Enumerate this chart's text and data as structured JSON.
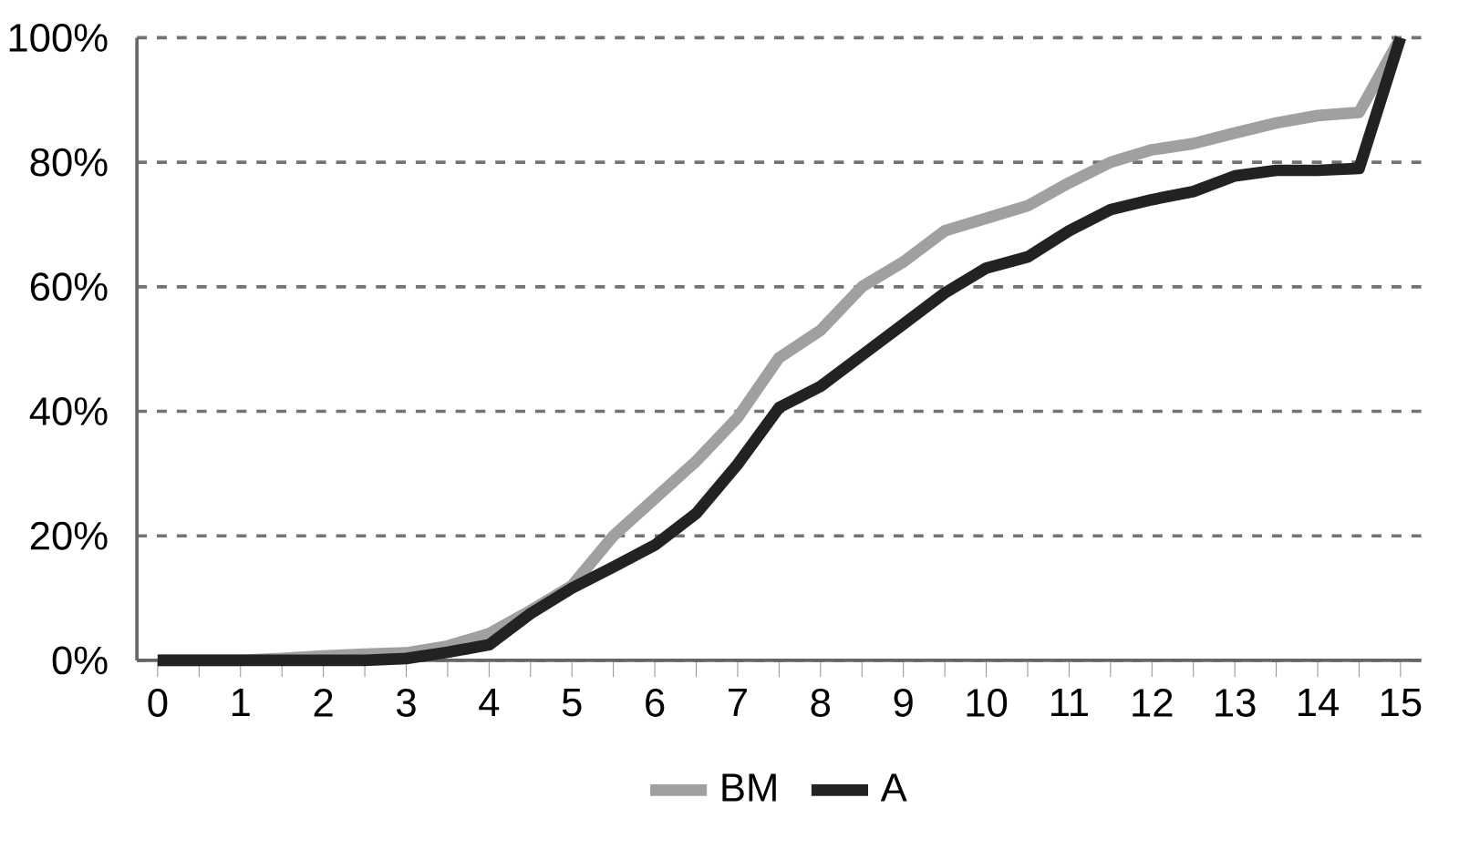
{
  "chart_data": {
    "type": "line",
    "x": [
      0,
      0.5,
      1,
      1.5,
      2,
      2.5,
      3,
      3.5,
      4,
      4.5,
      5,
      5.5,
      6,
      6.5,
      7,
      7.5,
      8,
      8.5,
      9,
      9.5,
      10,
      10.5,
      11,
      11.5,
      12,
      12.5,
      13,
      13.5,
      14,
      14.5,
      15
    ],
    "series": [
      {
        "name": "BM",
        "color": "#a0a0a0",
        "values": [
          0,
          0,
          0,
          0.3,
          0.7,
          1,
          1.2,
          2.3,
          4.3,
          8,
          12,
          20,
          26,
          32,
          39,
          48.6,
          53,
          60,
          64,
          69,
          71,
          73,
          76.7,
          80,
          82,
          83,
          84.7,
          86.3,
          87.5,
          88,
          100
        ]
      },
      {
        "name": "A",
        "color": "#222222",
        "values": [
          0,
          0,
          0,
          0,
          0,
          0,
          0.3,
          1.3,
          2.5,
          7.5,
          11.6,
          15,
          18.5,
          23.6,
          31.5,
          40.6,
          44,
          49,
          54,
          59,
          63,
          64.8,
          69,
          72.4,
          74,
          75.3,
          77.8,
          78.7,
          78.7,
          79,
          100
        ]
      }
    ],
    "xlim": [
      -0.25,
      15.25
    ],
    "xticks": [
      0,
      1,
      2,
      3,
      4,
      5,
      6,
      7,
      8,
      9,
      10,
      11,
      12,
      13,
      14,
      15
    ],
    "ylim": [
      0,
      100
    ],
    "yticks": [
      {
        "value": 0,
        "label": "0%"
      },
      {
        "value": 20,
        "label": "20%"
      },
      {
        "value": 40,
        "label": "40%"
      },
      {
        "value": 60,
        "label": "60%"
      },
      {
        "value": 80,
        "label": "80%"
      },
      {
        "value": 100,
        "label": "100%"
      }
    ],
    "grid": "y",
    "legend": "bottom",
    "line_style": "solid",
    "marker": "none"
  }
}
